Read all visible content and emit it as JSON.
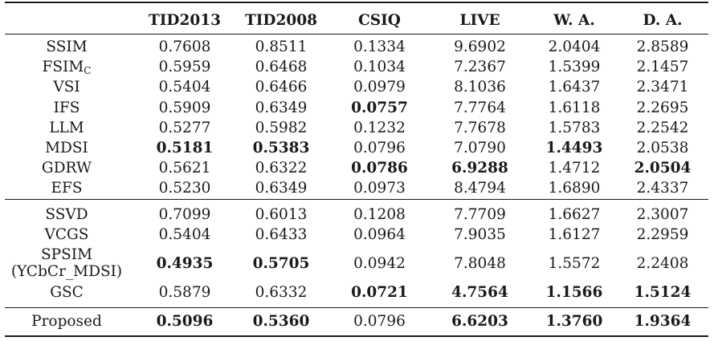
{
  "header": [
    "",
    "TID2013",
    "TID2008",
    "CSIQ",
    "LIVE",
    "W. A.",
    "D. A."
  ],
  "group1": [
    {
      "name": "SSIM",
      "values": [
        "0.7608",
        "0.8511",
        "0.1334",
        "9.6902",
        "2.0404",
        "2.8589"
      ],
      "bold": []
    },
    {
      "name": "FSIM",
      "sub": "C",
      "values": [
        "0.5959",
        "0.6468",
        "0.1034",
        "7.2367",
        "1.5399",
        "2.1457"
      ],
      "bold": []
    },
    {
      "name": "VSI",
      "values": [
        "0.5404",
        "0.6466",
        "0.0979",
        "8.1036",
        "1.6437",
        "2.3471"
      ],
      "bold": []
    },
    {
      "name": "IFS",
      "values": [
        "0.5909",
        "0.6349",
        "0.0757",
        "7.7764",
        "1.6118",
        "2.2695"
      ],
      "bold": [
        2
      ]
    },
    {
      "name": "LLM",
      "values": [
        "0.5277",
        "0.5982",
        "0.1232",
        "7.7678",
        "1.5783",
        "2.2542"
      ],
      "bold": []
    },
    {
      "name": "MDSI",
      "values": [
        "0.5181",
        "0.5383",
        "0.0796",
        "7.0790",
        "1.4493",
        "2.0538"
      ],
      "bold": [
        0,
        1,
        4
      ]
    },
    {
      "name": "GDRW",
      "values": [
        "0.5621",
        "0.6322",
        "0.0786",
        "6.9288",
        "1.4712",
        "2.0504"
      ],
      "bold": [
        2,
        3,
        5
      ]
    },
    {
      "name": "EFS",
      "values": [
        "0.5230",
        "0.6349",
        "0.0973",
        "8.4794",
        "1.6890",
        "2.4337"
      ],
      "bold": []
    }
  ],
  "group2": [
    {
      "name": "SSVD",
      "values": [
        "0.7099",
        "0.6013",
        "0.1208",
        "7.7709",
        "1.6627",
        "2.3007"
      ],
      "bold": []
    },
    {
      "name": "VCGS",
      "values": [
        "0.5404",
        "0.6433",
        "0.0964",
        "7.9035",
        "1.6127",
        "2.2959"
      ],
      "bold": []
    },
    {
      "name": "SPSIM",
      "name2": "(YCbCr_MDSI)",
      "values": [
        "0.4935",
        "0.5705",
        "0.0942",
        "7.8048",
        "1.5572",
        "2.2408"
      ],
      "bold": [
        0,
        1
      ]
    },
    {
      "name": "GSC",
      "values": [
        "0.5879",
        "0.6332",
        "0.0721",
        "4.7564",
        "1.1566",
        "1.5124"
      ],
      "bold": [
        2,
        3,
        4,
        5
      ]
    }
  ],
  "proposed": {
    "name": "Proposed",
    "values": [
      "0.5096",
      "0.5360",
      "0.0796",
      "6.6203",
      "1.3760",
      "1.9364"
    ],
    "bold": [
      0,
      1,
      3,
      4,
      5
    ]
  }
}
